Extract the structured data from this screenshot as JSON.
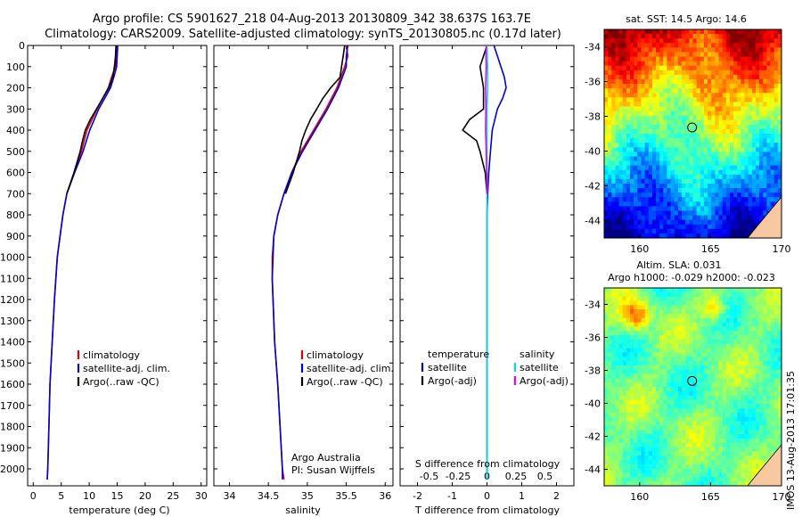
{
  "header": {
    "title_line1": "Argo profile: CS 5901627_218 04-Aug-2013 20130809_342 38.637S 163.7E",
    "title_line2": "Climatology: CARS2009. Satellite-adjusted climatology: synTS_20130805.nc (0.17d later)"
  },
  "colors": {
    "climatology": "#dd0000",
    "satellite": "#0000dd",
    "argo": "#000000",
    "sat_salinity": "#00dddd",
    "argo_salinity": "#ee00ee",
    "land": "#f8c8a0"
  },
  "chart_data": [
    {
      "id": "temperature",
      "type": "line",
      "xlabel": "temperature (deg C)",
      "xlim": [
        -1,
        31
      ],
      "ylim": [
        2080,
        0
      ],
      "xticks": [
        0,
        5,
        10,
        15,
        20,
        25,
        30
      ],
      "yticks": [
        0,
        100,
        200,
        300,
        400,
        500,
        600,
        700,
        800,
        900,
        1000,
        1100,
        1200,
        1300,
        1400,
        1500,
        1600,
        1700,
        1800,
        1900,
        2000
      ],
      "legend": [
        "climatology",
        "satellite-adj. clim.",
        "Argo(..raw -QC)"
      ],
      "series": [
        {
          "name": "climatology",
          "color": "#dd0000",
          "depth": [
            0,
            50,
            100,
            150,
            200,
            300,
            400,
            500,
            600,
            700,
            800,
            900,
            1000,
            1200,
            1400,
            1600,
            1800,
            2000,
            2050
          ],
          "values": [
            14.9,
            14.8,
            14.7,
            14.0,
            13.4,
            11.4,
            9.6,
            8.6,
            7.3,
            6.0,
            5.3,
            4.8,
            4.3,
            3.8,
            3.4,
            3.0,
            2.8,
            2.6,
            2.5
          ]
        },
        {
          "name": "satellite-adj. clim.",
          "color": "#0000dd",
          "depth": [
            0,
            50,
            100,
            150,
            200,
            300,
            400,
            500,
            600,
            700,
            800,
            900,
            1000,
            1200,
            1400,
            1600,
            1800,
            2000,
            2050
          ],
          "values": [
            15.1,
            15.0,
            14.9,
            14.4,
            13.8,
            11.7,
            10.1,
            8.9,
            7.4,
            6.0,
            5.3,
            4.8,
            4.3,
            3.8,
            3.4,
            3.0,
            2.8,
            2.6,
            2.5
          ]
        },
        {
          "name": "Argo(..raw -QC)",
          "color": "#000000",
          "depth": [
            0,
            50,
            100,
            150,
            200,
            300,
            350,
            400,
            450,
            500,
            600,
            700
          ],
          "values": [
            14.8,
            14.7,
            14.5,
            14.2,
            13.5,
            11.3,
            10.2,
            9.3,
            8.8,
            8.4,
            7.3,
            6.0
          ]
        }
      ]
    },
    {
      "id": "salinity",
      "type": "line",
      "xlabel": "salinity",
      "xlim": [
        33.8,
        36.1
      ],
      "ylim": [
        2080,
        0
      ],
      "xticks": [
        34,
        34.5,
        35,
        35.5,
        36
      ],
      "legend": [
        "climatology",
        "satellite-adj. clim.",
        "Argo(..raw -QC)"
      ],
      "annotation": [
        "Argo Australia",
        "PI: Susan Wijffels"
      ],
      "series": [
        {
          "name": "climatology",
          "color": "#dd0000",
          "depth": [
            0,
            50,
            100,
            200,
            300,
            400,
            500,
            600,
            700,
            800,
            900,
            1000,
            1100,
            1200,
            1400,
            1600,
            1800,
            2000,
            2050
          ],
          "values": [
            35.5,
            35.52,
            35.48,
            35.38,
            35.24,
            35.08,
            34.92,
            34.8,
            34.7,
            34.62,
            34.57,
            34.55,
            34.55,
            34.56,
            34.58,
            34.62,
            34.65,
            34.68,
            34.7
          ]
        },
        {
          "name": "satellite-adj. clim.",
          "color": "#0000dd",
          "depth": [
            0,
            50,
            100,
            200,
            300,
            400,
            500,
            600,
            700,
            800,
            900,
            1000,
            1100,
            1200,
            1400,
            1600,
            1800,
            2000,
            2050
          ],
          "values": [
            35.52,
            35.5,
            35.5,
            35.4,
            35.26,
            35.1,
            34.94,
            34.8,
            34.7,
            34.62,
            34.57,
            34.56,
            34.55,
            34.56,
            34.58,
            34.62,
            34.65,
            34.68,
            34.68
          ]
        },
        {
          "name": "Argo(..raw -QC)",
          "color": "#000000",
          "depth": [
            0,
            50,
            100,
            150,
            200,
            250,
            300,
            350,
            400,
            450,
            500,
            550,
            600,
            700
          ],
          "values": [
            35.48,
            35.46,
            35.44,
            35.42,
            35.3,
            35.2,
            35.12,
            35.04,
            34.98,
            34.93,
            34.9,
            34.86,
            34.82,
            34.72
          ]
        }
      ]
    },
    {
      "id": "difference",
      "type": "line",
      "xlabel": "T difference from climatology",
      "xlabel_top": "S difference from climatology",
      "xlim": [
        -2.5,
        2.5
      ],
      "ylim": [
        2080,
        0
      ],
      "xticks": [
        -2,
        -1,
        0,
        1,
        2
      ],
      "xticks_top": [
        "-0.5",
        "-0.25",
        "0",
        "0.25",
        "0.5"
      ],
      "legend_heads": [
        "temperature",
        "salinity"
      ],
      "legend_left": [
        "satellite",
        "Argo(-adj)"
      ],
      "legend_right": [
        "satellite",
        "Argo(-adj)"
      ],
      "series": [
        {
          "name": "T satellite",
          "color": "#0000dd",
          "depth": [
            0,
            50,
            100,
            150,
            200,
            250,
            300,
            400,
            500,
            600,
            700,
            800,
            900,
            1000,
            1200,
            1400,
            1600,
            1800,
            2000,
            2050
          ],
          "values": [
            0.2,
            0.3,
            0.4,
            0.5,
            0.55,
            0.45,
            0.3,
            0.15,
            0.1,
            0.05,
            0.02,
            0,
            0,
            0,
            0,
            0,
            0,
            0,
            0,
            0
          ]
        },
        {
          "name": "T Argo",
          "color": "#000000",
          "depth": [
            0,
            50,
            100,
            200,
            300,
            350,
            400,
            450,
            500,
            600,
            700
          ],
          "values": [
            0,
            -0.1,
            -0.2,
            -0.1,
            -0.1,
            -0.5,
            -0.7,
            -0.3,
            -0.2,
            -0.05,
            0
          ]
        },
        {
          "name": "S satellite",
          "color": "#00dddd",
          "depth": [
            0,
            50,
            100,
            200,
            300,
            400,
            500,
            700,
            900,
            1100,
            1300,
            1500,
            1700,
            1900,
            2050
          ],
          "values": [
            0,
            0.01,
            0.02,
            0.02,
            0,
            0,
            0,
            0,
            0,
            0,
            0,
            0,
            0,
            0,
            0
          ]
        },
        {
          "name": "S Argo",
          "color": "#ee00ee",
          "depth": [
            0,
            50,
            100,
            200,
            300,
            400,
            500,
            600,
            700
          ],
          "values": [
            -0.02,
            -0.03,
            -0.02,
            -0.04,
            -0.03,
            -0.04,
            -0.02,
            -0.01,
            0
          ]
        }
      ]
    },
    {
      "id": "sst_map",
      "type": "heatmap",
      "title": "sat. SST: 14.5  Argo: 14.6",
      "xlim": [
        157.5,
        170
      ],
      "ylim": [
        -45,
        -33
      ],
      "xticks": [
        160,
        165,
        170
      ],
      "yticks": [
        -34,
        -36,
        -38,
        -40,
        -42,
        -44
      ],
      "marker": [
        163.7,
        -38.64
      ],
      "colormap": "sst"
    },
    {
      "id": "sla_map",
      "type": "heatmap",
      "title": "Altim. SLA: 0.031",
      "subtitle": "Argo h1000: -0.029 h2000: -0.023",
      "xlim": [
        157.5,
        170
      ],
      "ylim": [
        -45,
        -33
      ],
      "xticks": [
        160,
        165,
        170
      ],
      "yticks": [
        -34,
        -36,
        -38,
        -40,
        -42,
        -44
      ],
      "marker": [
        163.7,
        -38.64
      ],
      "colormap": "sla"
    }
  ],
  "stamp": "IMOS 13-Aug-2013 17:01:35"
}
